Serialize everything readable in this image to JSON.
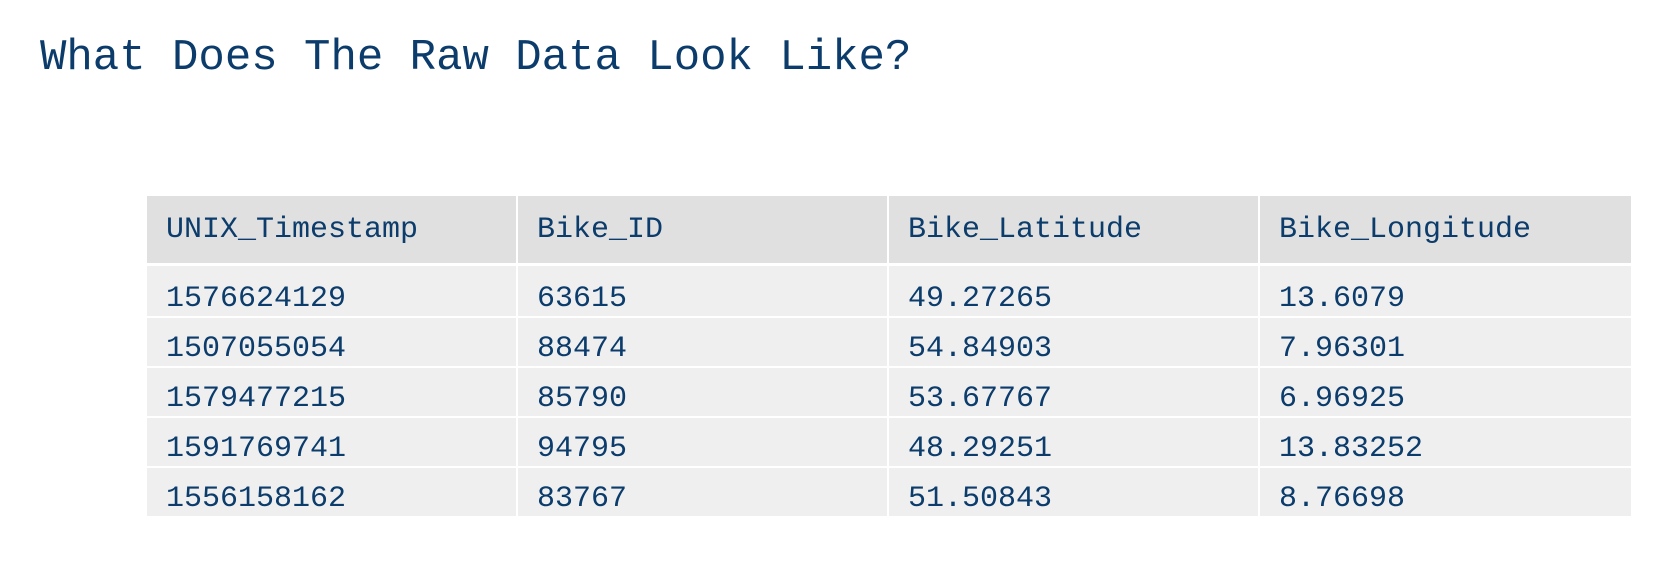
{
  "title": "What Does The Raw Data Look Like?",
  "table": {
    "headers": [
      "UNIX_Timestamp",
      "Bike_ID",
      "Bike_Latitude",
      "Bike_Longitude"
    ],
    "rows": [
      [
        "1576624129",
        "63615",
        "49.27265",
        "13.6079"
      ],
      [
        "1507055054",
        "88474",
        "54.84903",
        "7.96301"
      ],
      [
        "1579477215",
        "85790",
        "53.67767",
        "6.96925"
      ],
      [
        "1591769741",
        "94795",
        "48.29251",
        "13.83252"
      ],
      [
        "1556158162",
        "83767",
        "51.50843",
        "8.76698"
      ]
    ]
  }
}
